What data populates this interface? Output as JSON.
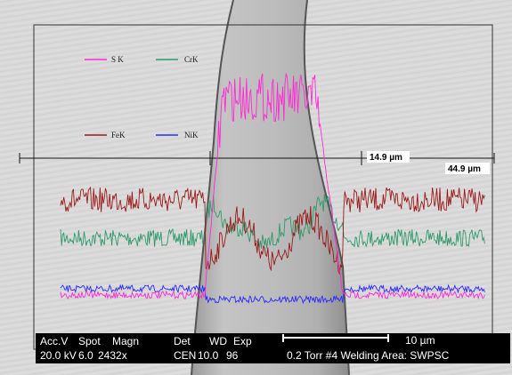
{
  "legend": [
    "S K",
    "CrK",
    "FeK",
    "NiK"
  ],
  "measurements": [
    "14.9 µm",
    "44.9 µm"
  ],
  "info_bar": {
    "header": [
      "Acc.V",
      "Spot",
      "Magn",
      "Det",
      "WD",
      "Exp"
    ],
    "values": [
      "20.0 kV",
      "6.0",
      "2432x",
      "CEN",
      "10.0",
      "96"
    ],
    "scale": "10 µm",
    "description": "0.2 Torr #4 Welding Area: SWPSC"
  }
}
